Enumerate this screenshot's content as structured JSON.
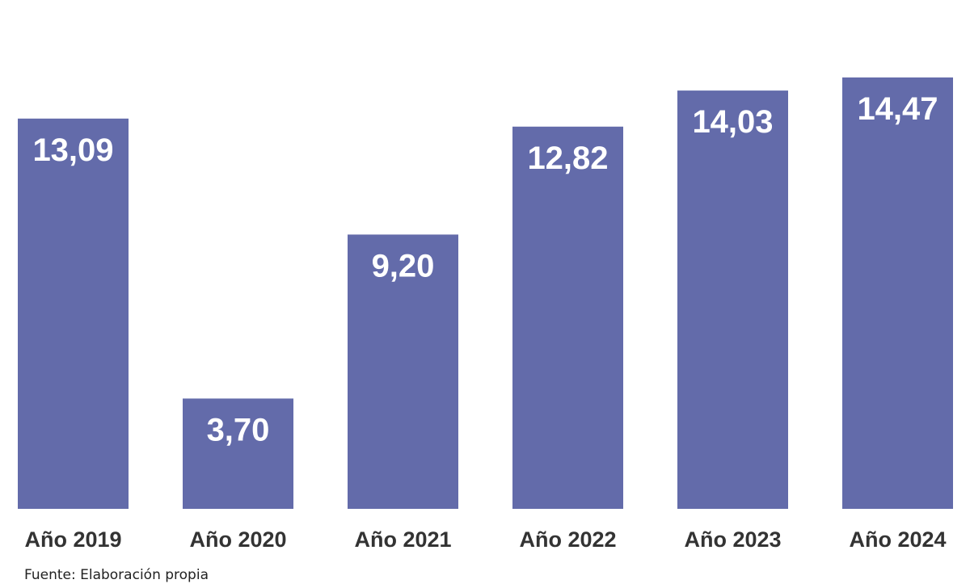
{
  "chart_data": {
    "type": "bar",
    "categories": [
      "Año 2019",
      "Año 2020",
      "Año 2021",
      "Año 2022",
      "Año 2023",
      "Año 2024"
    ],
    "values": [
      13.09,
      3.7,
      9.2,
      12.82,
      14.03,
      14.47
    ],
    "data_labels": [
      "13,09",
      "3,70",
      "9,20",
      "12,82",
      "14,03",
      "14,47"
    ],
    "title": "",
    "xlabel": "",
    "ylabel": "",
    "ylim": [
      0,
      14.9
    ],
    "grid": false,
    "legend": "none",
    "bar_color": "#636BAA"
  },
  "source_note": "Fuente: Elaboración propia"
}
